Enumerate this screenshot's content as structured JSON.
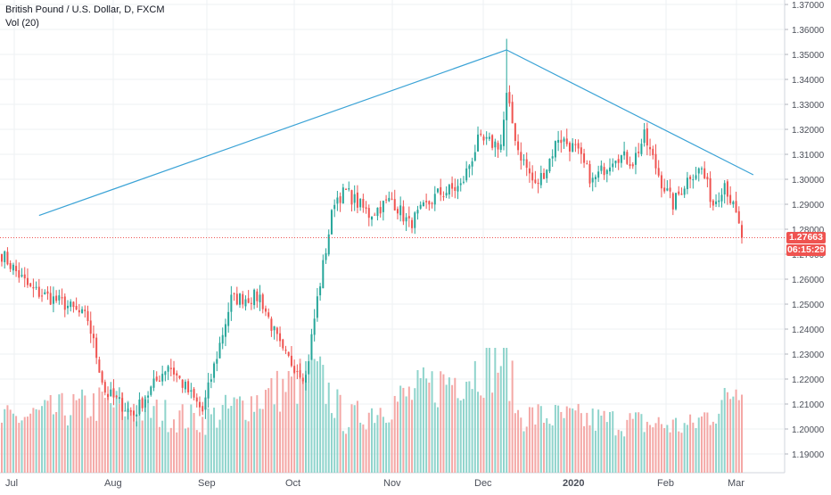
{
  "header": {
    "symbol_title": "British Pound / U.S. Dollar, D, FXCM",
    "volume_label": "Vol (20)"
  },
  "price_tags": {
    "last_price": "1.27663",
    "countdown": "06:15:29"
  },
  "colors": {
    "up": "#26a69a",
    "down": "#ef5350",
    "vol_up": "#8fd4cc",
    "vol_down": "#f4a8a6",
    "trendline": "#3ba3d6",
    "price_line": "#ef5350",
    "grid": "#eef0f3",
    "axis_text": "#4a4e58"
  },
  "chart_data": {
    "type": "candlestick",
    "title": "British Pound / U.S. Dollar, D, FXCM",
    "y_axis_ticks": [
      "1.37000",
      "1.36000",
      "1.35000",
      "1.34000",
      "1.33000",
      "1.32000",
      "1.31000",
      "1.30000",
      "1.29000",
      "1.28000",
      "1.27000",
      "1.26000",
      "1.25000",
      "1.24000",
      "1.23000",
      "1.22000",
      "1.21000",
      "1.20000",
      "1.19000"
    ],
    "ylim": [
      1.1825,
      1.3718
    ],
    "x_axis_labels": [
      "Jul",
      "Aug",
      "Sep",
      "Oct",
      "Nov",
      "Dec",
      "2020",
      "Feb",
      "Mar"
    ],
    "last_price": 1.27663,
    "grid": true,
    "trendlines": [
      {
        "from": {
          "bar": 13,
          "price": 1.2855
        },
        "to": {
          "bar": 176,
          "price": 1.3518
        }
      },
      {
        "from": {
          "bar": 176,
          "price": 1.3518
        },
        "to": {
          "bar": 262,
          "price": 1.3018
        }
      }
    ],
    "waypoints": [
      {
        "bar": 0,
        "price": 1.27
      },
      {
        "bar": 10,
        "price": 1.256
      },
      {
        "bar": 22,
        "price": 1.25
      },
      {
        "bar": 30,
        "price": 1.244
      },
      {
        "bar": 36,
        "price": 1.215
      },
      {
        "bar": 46,
        "price": 1.206
      },
      {
        "bar": 58,
        "price": 1.226
      },
      {
        "bar": 70,
        "price": 1.207
      },
      {
        "bar": 80,
        "price": 1.252
      },
      {
        "bar": 90,
        "price": 1.253
      },
      {
        "bar": 98,
        "price": 1.23
      },
      {
        "bar": 106,
        "price": 1.221
      },
      {
        "bar": 110,
        "price": 1.252
      },
      {
        "bar": 116,
        "price": 1.292
      },
      {
        "bar": 120,
        "price": 1.295
      },
      {
        "bar": 128,
        "price": 1.286
      },
      {
        "bar": 136,
        "price": 1.292
      },
      {
        "bar": 142,
        "price": 1.282
      },
      {
        "bar": 152,
        "price": 1.294
      },
      {
        "bar": 160,
        "price": 1.297
      },
      {
        "bar": 166,
        "price": 1.315
      },
      {
        "bar": 174,
        "price": 1.314
      },
      {
        "bar": 176,
        "price": 1.333
      },
      {
        "bar": 180,
        "price": 1.312
      },
      {
        "bar": 186,
        "price": 1.297
      },
      {
        "bar": 190,
        "price": 1.305
      },
      {
        "bar": 194,
        "price": 1.317
      },
      {
        "bar": 200,
        "price": 1.312
      },
      {
        "bar": 206,
        "price": 1.299
      },
      {
        "bar": 214,
        "price": 1.31
      },
      {
        "bar": 220,
        "price": 1.307
      },
      {
        "bar": 224,
        "price": 1.317
      },
      {
        "bar": 230,
        "price": 1.299
      },
      {
        "bar": 234,
        "price": 1.29
      },
      {
        "bar": 240,
        "price": 1.302
      },
      {
        "bar": 244,
        "price": 1.304
      },
      {
        "bar": 248,
        "price": 1.29
      },
      {
        "bar": 252,
        "price": 1.299
      },
      {
        "bar": 256,
        "price": 1.285
      },
      {
        "bar": 258,
        "price": 1.2766
      }
    ],
    "volume": {
      "levels": [
        {
          "bar": 0,
          "value": 0.45
        },
        {
          "bar": 36,
          "value": 0.6
        },
        {
          "bar": 46,
          "value": 0.55
        },
        {
          "bar": 70,
          "value": 0.45
        },
        {
          "bar": 110,
          "value": 0.85
        },
        {
          "bar": 120,
          "value": 0.45
        },
        {
          "bar": 176,
          "value": 1.0
        },
        {
          "bar": 180,
          "value": 0.5
        },
        {
          "bar": 240,
          "value": 0.4
        },
        {
          "bar": 252,
          "value": 0.6
        },
        {
          "bar": 258,
          "value": 0.85
        }
      ]
    }
  }
}
